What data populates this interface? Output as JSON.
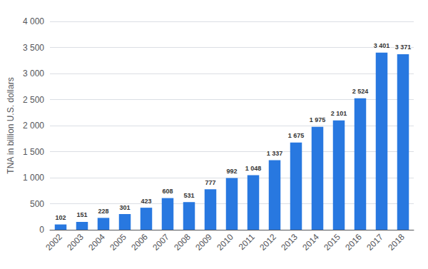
{
  "chart_data": {
    "type": "bar",
    "categories": [
      "2002",
      "2003",
      "2004",
      "2005",
      "2006",
      "2007",
      "2008",
      "2009",
      "2010",
      "2011",
      "2012",
      "2013",
      "2014",
      "2015",
      "2016",
      "2017",
      "2018"
    ],
    "values": [
      102,
      151,
      228,
      301,
      423,
      608,
      531,
      777,
      992,
      1048,
      1337,
      1675,
      1975,
      2101,
      2524,
      3401,
      3371
    ],
    "value_labels": [
      "102",
      "151",
      "228",
      "301",
      "423",
      "608",
      "531",
      "777",
      "992",
      "1 048",
      "1 337",
      "1 675",
      "1 975",
      "2 101",
      "2 524",
      "3 401",
      "3 371"
    ],
    "data_labels": true,
    "color": "#2878e0",
    "ylabel": "TNA in billion U.S. dollars",
    "ylim": [
      0,
      4000
    ],
    "yticks": [
      0,
      500,
      {
        "value": 1000,
        "label": "1 000"
      },
      {
        "value": 1500,
        "label": "1 500"
      },
      {
        "value": 2000,
        "label": "2 000"
      },
      {
        "value": 2500,
        "label": "2 500"
      },
      {
        "value": 3000,
        "label": "3 000"
      },
      {
        "value": 3500,
        "label": "3 500"
      },
      {
        "value": 4000,
        "label": "4 000"
      }
    ],
    "grid": true
  }
}
